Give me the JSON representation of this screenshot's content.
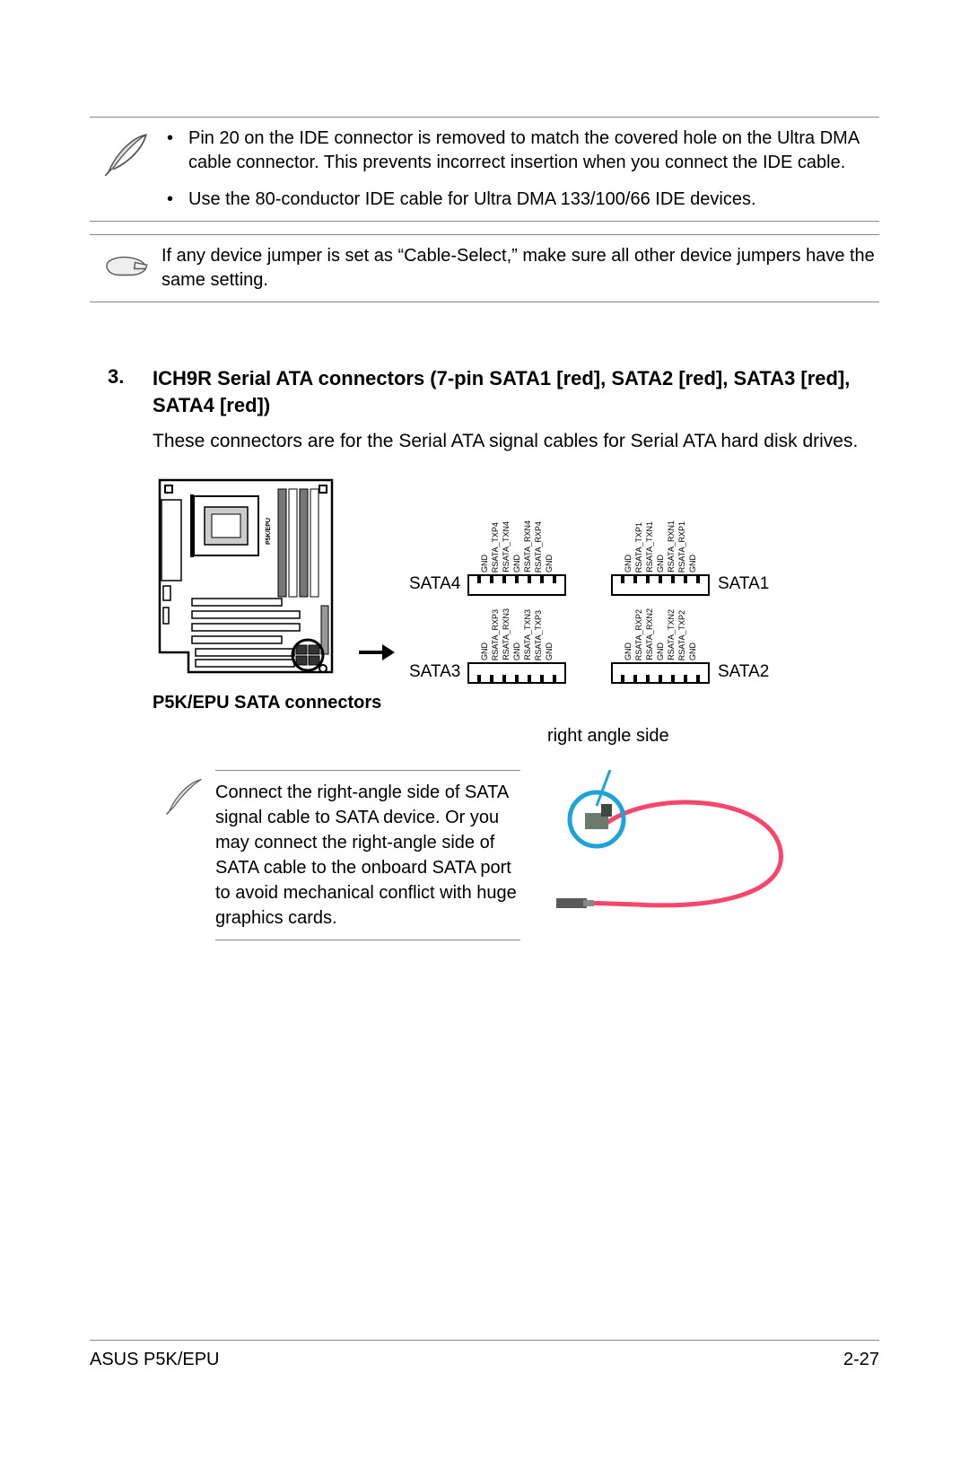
{
  "note1": {
    "bullets": [
      "Pin 20 on the IDE connector is removed to match the covered hole on the Ultra DMA cable connector. This prevents incorrect insertion when you connect the IDE cable.",
      "Use the 80-conductor IDE cable for Ultra DMA 133/100/66 IDE devices."
    ]
  },
  "note2": {
    "text": "If any device jumper is set as “Cable-Select,” make sure all other device jumpers have the same setting."
  },
  "section": {
    "number": "3.",
    "heading": "ICH9R Serial ATA connectors (7-pin SATA1 [red], SATA2 [red], SATA3 [red], SATA4 [red])",
    "paragraph": "These connectors are for the Serial ATA signal cables for Serial ATA hard disk drives."
  },
  "diagram": {
    "caption": "P5K/EPU SATA connectors",
    "mobo_label": "P5K/EPU",
    "connectors": {
      "top_left": {
        "label": "SATA4",
        "signals": [
          "GND",
          "RSATA_TXP4",
          "RSATA_TXN4",
          "GND",
          "RSATA_RXN4",
          "RSATA_RXP4",
          "GND"
        ]
      },
      "top_right": {
        "label": "SATA1",
        "signals": [
          "GND",
          "RSATA_TXP1",
          "RSATA_TXN1",
          "GND",
          "RSATA_RXN1",
          "RSATA_RXP1",
          "GND"
        ]
      },
      "bot_left": {
        "label": "SATA3",
        "signals": [
          "GND",
          "RSATA_RXP3",
          "RSATA_RXN3",
          "GND",
          "RSATA_TXN3",
          "RSATA_TXP3",
          "GND"
        ]
      },
      "bot_right": {
        "label": "SATA2",
        "signals": [
          "GND",
          "RSATA_RXP2",
          "RSATA_RXN2",
          "GND",
          "RSATA_TXN2",
          "RSATA_TXP2",
          "GND"
        ]
      }
    }
  },
  "cable_note": {
    "angle_label": "right angle side",
    "text": "Connect the right-angle side of SATA signal cable to SATA device. Or you may connect the right-angle side of SATA cable to the onboard SATA port to avoid mechanical conflict with huge graphics cards."
  },
  "footer": {
    "left": "ASUS P5K/EPU",
    "right": "2-27"
  },
  "colors": {
    "cable": "#f7456b",
    "ring": "#1ea3d8",
    "plug": "#6b7a6e"
  }
}
